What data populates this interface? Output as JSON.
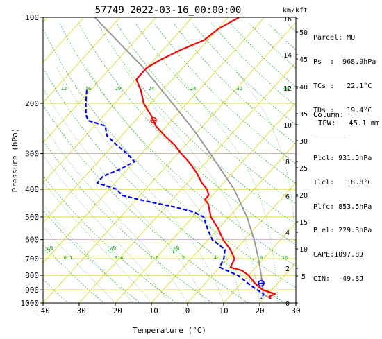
{
  "chart_data": {
    "type": "skew-t",
    "title": "57749 2022-03-16_00:00:00",
    "xlabel": "Temperature (°C)",
    "ylabel": "Pressure (hPa)",
    "xlim": [
      -40,
      30
    ],
    "ylim": [
      1000,
      100
    ],
    "xticks": [
      "−40",
      "−30",
      "−20",
      "−10",
      "0",
      "10",
      "20",
      "30"
    ],
    "yticks": [
      "100",
      "200",
      "300",
      "400",
      "500",
      "600",
      "700",
      "800",
      "900",
      "1000"
    ],
    "height_axis_label": "km/kft",
    "height_km": [
      "16",
      "14",
      "12",
      "10",
      "8",
      "6",
      "4",
      "2",
      "0"
    ],
    "height_kft": [
      "50",
      "45",
      "40",
      "35",
      "30",
      "25",
      "20",
      "15",
      "10",
      "5"
    ],
    "mixing_ratio_labels_upper": [
      "12",
      "16",
      "20",
      "24",
      "28",
      "32",
      "40"
    ],
    "mixing_ratio_labels_lower": [
      "0.1",
      "0.4",
      "1.0",
      "2",
      "4",
      "10",
      "16"
    ],
    "adiabat_labels": [
      "250",
      "270",
      "290"
    ],
    "series": [
      {
        "name": "Temperature",
        "color": "#ff0000",
        "style": "solid",
        "points": [
          {
            "p": 100,
            "t": -57
          },
          {
            "p": 110,
            "t": -60
          },
          {
            "p": 120,
            "t": -61
          },
          {
            "p": 130,
            "t": -65
          },
          {
            "p": 140,
            "t": -68
          },
          {
            "p": 150,
            "t": -70
          },
          {
            "p": 165,
            "t": -70
          },
          {
            "p": 180,
            "t": -66
          },
          {
            "p": 200,
            "t": -62
          },
          {
            "p": 220,
            "t": -57
          },
          {
            "p": 240,
            "t": -53
          },
          {
            "p": 260,
            "t": -48
          },
          {
            "p": 280,
            "t": -43
          },
          {
            "p": 300,
            "t": -39
          },
          {
            "p": 320,
            "t": -35
          },
          {
            "p": 350,
            "t": -30
          },
          {
            "p": 380,
            "t": -26
          },
          {
            "p": 400,
            "t": -23
          },
          {
            "p": 420,
            "t": -21
          },
          {
            "p": 435,
            "t": -21
          },
          {
            "p": 450,
            "t": -19
          },
          {
            "p": 500,
            "t": -15
          },
          {
            "p": 550,
            "t": -10
          },
          {
            "p": 600,
            "t": -6
          },
          {
            "p": 650,
            "t": -1.5
          },
          {
            "p": 700,
            "t": 2
          },
          {
            "p": 750,
            "t": 3
          },
          {
            "p": 770,
            "t": 7
          },
          {
            "p": 800,
            "t": 10
          },
          {
            "p": 850,
            "t": 13.5
          },
          {
            "p": 900,
            "t": 17.5
          },
          {
            "p": 930,
            "t": 22
          },
          {
            "p": 950,
            "t": 21
          },
          {
            "p": 968.9,
            "t": 22.1
          }
        ]
      },
      {
        "name": "Dewpoint",
        "color": "#0000ff",
        "style": "dashed",
        "points": [
          {
            "p": 180,
            "t": -81
          },
          {
            "p": 200,
            "t": -78
          },
          {
            "p": 220,
            "t": -75
          },
          {
            "p": 230,
            "t": -73
          },
          {
            "p": 240,
            "t": -67
          },
          {
            "p": 260,
            "t": -64
          },
          {
            "p": 280,
            "t": -59
          },
          {
            "p": 300,
            "t": -54
          },
          {
            "p": 320,
            "t": -50
          },
          {
            "p": 340,
            "t": -52
          },
          {
            "p": 360,
            "t": -55
          },
          {
            "p": 380,
            "t": -55
          },
          {
            "p": 400,
            "t": -48
          },
          {
            "p": 420,
            "t": -45
          },
          {
            "p": 440,
            "t": -37
          },
          {
            "p": 460,
            "t": -28
          },
          {
            "p": 480,
            "t": -21
          },
          {
            "p": 500,
            "t": -17
          },
          {
            "p": 550,
            "t": -13
          },
          {
            "p": 600,
            "t": -9
          },
          {
            "p": 650,
            "t": -3
          },
          {
            "p": 700,
            "t": -1
          },
          {
            "p": 750,
            "t": 0
          },
          {
            "p": 800,
            "t": 7
          },
          {
            "p": 850,
            "t": 11.5
          },
          {
            "p": 900,
            "t": 16
          },
          {
            "p": 930,
            "t": 18.8
          },
          {
            "p": 950,
            "t": 19.2
          },
          {
            "p": 968.9,
            "t": 19.4
          }
        ]
      },
      {
        "name": "Parcel",
        "color": "#999999",
        "style": "solid",
        "points": [
          {
            "p": 968.9,
            "t": 22.1
          },
          {
            "p": 931.5,
            "t": 18.8
          },
          {
            "p": 900,
            "t": 17.6
          },
          {
            "p": 850,
            "t": 15.6
          },
          {
            "p": 800,
            "t": 13.5
          },
          {
            "p": 700,
            "t": 8.6
          },
          {
            "p": 600,
            "t": 2.6
          },
          {
            "p": 500,
            "t": -5
          },
          {
            "p": 400,
            "t": -15.5
          },
          {
            "p": 300,
            "t": -31
          },
          {
            "p": 250,
            "t": -41
          },
          {
            "p": 200,
            "t": -54
          },
          {
            "p": 150,
            "t": -71
          },
          {
            "p": 100,
            "t": -97
          }
        ]
      }
    ],
    "markers": [
      {
        "name": "EL",
        "p": 229.3,
        "t": -55,
        "color": "#ff0000"
      },
      {
        "name": "LFC",
        "p": 853.5,
        "t": 15.5,
        "color": "#0000ff"
      }
    ],
    "info": {
      "lines": [
        "Parcel: MU",
        "Ps  :  968.9hPa",
        "TCs :   22.1°C",
        "TDs :   19.4°C",
        "————————————",
        "Plcl: 931.5hPa",
        "Tlcl:   18.8°C",
        "Plfc: 853.5hPa",
        "P_el: 229.3hPa",
        "CAPE:1097.8J",
        "CIN:  -49.8J"
      ],
      "column_label": "Column:",
      "tpw": "TPW:   45.1 mm"
    }
  }
}
